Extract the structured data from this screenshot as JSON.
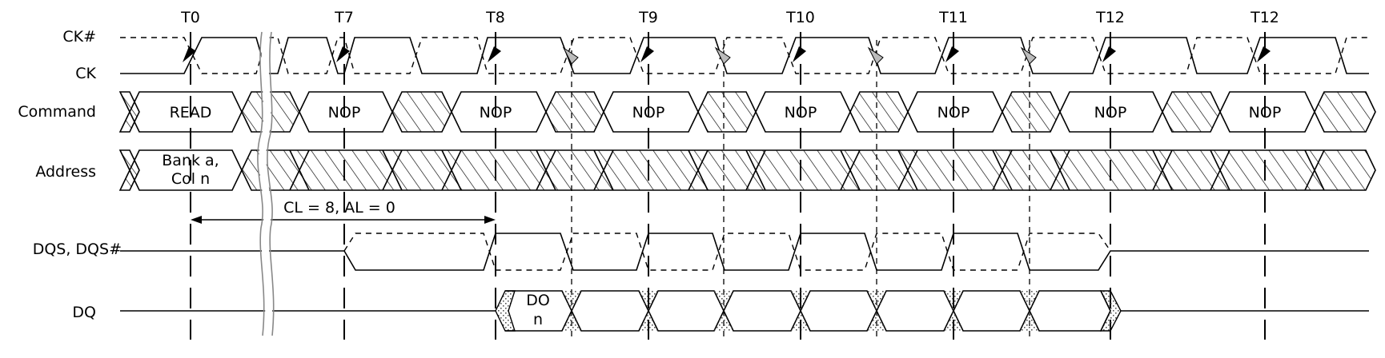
{
  "signals": {
    "ck_n": "CK#",
    "ck": "CK",
    "command": "Command",
    "address": "Address",
    "dqs": "DQS, DQS#",
    "dq": "DQ"
  },
  "ticks": [
    "T0",
    "T7",
    "T8",
    "T9",
    "T10",
    "T11",
    "T12",
    "T12"
  ],
  "commands": [
    "READ",
    "NOP",
    "NOP",
    "NOP",
    "NOP",
    "NOP",
    "NOP",
    "NOP"
  ],
  "address": {
    "line1": "Bank a,",
    "line2": "Col n"
  },
  "annotation": "CL = 8, AL = 0",
  "dq_data": {
    "line1": "DO",
    "line2": "n"
  },
  "colors": {
    "line": "#000000",
    "hatch": "#000000",
    "dots": "#555555",
    "break": "#888888"
  }
}
